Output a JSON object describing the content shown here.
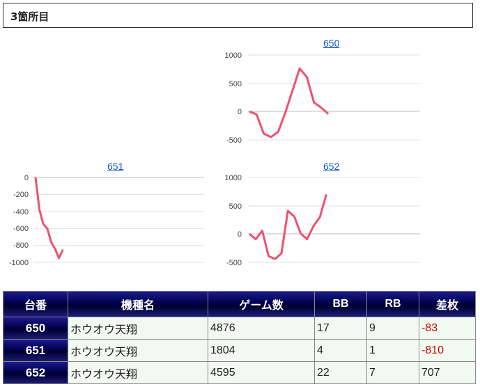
{
  "section": {
    "title": "3箇所目"
  },
  "charts": [
    {
      "label": "650",
      "yticks": [
        "1000",
        "500",
        "0",
        "-500"
      ]
    },
    {
      "label": "651",
      "yticks": [
        "0",
        "-200",
        "-400",
        "-600",
        "-800",
        "-1000"
      ]
    },
    {
      "label": "652",
      "yticks": [
        "1000",
        "500",
        "0",
        "-500"
      ]
    }
  ],
  "chart_data": [
    {
      "type": "line",
      "title": "650",
      "ylim": [
        -500,
        1000
      ],
      "color": "#f0506e",
      "values": [
        0,
        -50,
        -390,
        -450,
        -360,
        -20,
        370,
        760,
        610,
        160,
        70,
        -40
      ]
    },
    {
      "type": "line",
      "title": "651",
      "ylim": [
        -1000,
        0
      ],
      "color": "#f0506e",
      "values": [
        0,
        -380,
        -550,
        -600,
        -760,
        -840,
        -950,
        -850
      ]
    },
    {
      "type": "line",
      "title": "652",
      "ylim": [
        -500,
        1000
      ],
      "color": "#f0506e",
      "values": [
        0,
        -90,
        60,
        -390,
        -440,
        -340,
        410,
        310,
        10,
        -90,
        140,
        300,
        700
      ]
    }
  ],
  "table": {
    "headers": [
      "台番",
      "機種名",
      "ゲーム数",
      "BB",
      "RB",
      "差枚"
    ],
    "rows": [
      [
        "650",
        "ホウオウ天翔",
        "4876",
        "17",
        "9",
        "-83"
      ],
      [
        "651",
        "ホウオウ天翔",
        "1804",
        "4",
        "1",
        "-810"
      ],
      [
        "652",
        "ホウオウ天翔",
        "4595",
        "22",
        "7",
        "707"
      ]
    ]
  }
}
